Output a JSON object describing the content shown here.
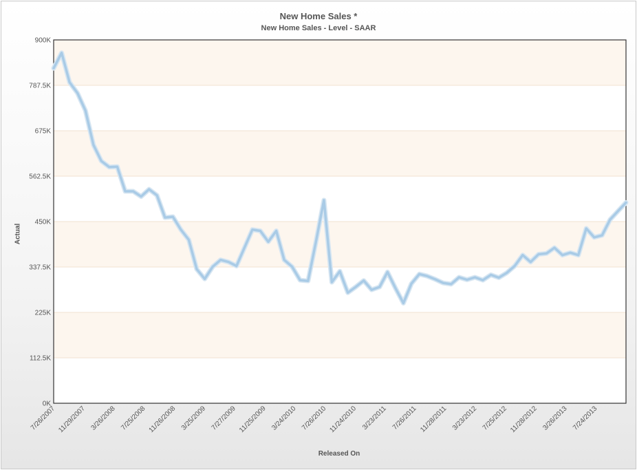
{
  "chart_data": {
    "type": "line",
    "title": "New Home Sales *",
    "subtitle": "New Home Sales - Level - SAAR",
    "xlabel": "Released On",
    "ylabel": "Actual",
    "ylim": [
      0,
      900000
    ],
    "y_ticks": [
      {
        "value": 0,
        "label": "0K"
      },
      {
        "value": 112500,
        "label": "112.5K"
      },
      {
        "value": 225000,
        "label": "225K"
      },
      {
        "value": 337500,
        "label": "337.5K"
      },
      {
        "value": 450000,
        "label": "450K"
      },
      {
        "value": 562500,
        "label": "562.5K"
      },
      {
        "value": 675000,
        "label": "675K"
      },
      {
        "value": 787500,
        "label": "787.5K"
      },
      {
        "value": 900000,
        "label": "900K"
      }
    ],
    "x_tick_labels": [
      "7/26/2007",
      "11/29/2007",
      "3/26/2008",
      "7/25/2008",
      "11/26/2008",
      "3/25/2009",
      "7/27/2009",
      "11/25/2009",
      "3/24/2010",
      "7/26/2010",
      "11/24/2010",
      "3/23/2011",
      "7/26/2011",
      "11/28/2011",
      "3/23/2012",
      "7/25/2012",
      "11/28/2012",
      "3/26/2013",
      "7/24/2013"
    ],
    "grid": true,
    "legend": "none",
    "series": [
      {
        "color": "#a9cbe6",
        "values": [
          830000,
          868000,
          795000,
          768000,
          725000,
          640000,
          600000,
          585000,
          586000,
          525000,
          525000,
          512000,
          530000,
          515000,
          460000,
          462000,
          430000,
          405000,
          332000,
          308000,
          338000,
          355000,
          350000,
          340000,
          385000,
          430000,
          427000,
          400000,
          427000,
          355000,
          338000,
          305000,
          303000,
          400000,
          503000,
          300000,
          327000,
          274000,
          288000,
          304000,
          281000,
          288000,
          325000,
          285000,
          248000,
          296000,
          320000,
          315000,
          307000,
          298000,
          295000,
          312000,
          306000,
          312000,
          305000,
          318000,
          311000,
          323000,
          340000,
          367000,
          350000,
          369000,
          371000,
          385000,
          367000,
          373000,
          367000,
          433000,
          411000,
          416000,
          455000,
          476000,
          497000
        ]
      }
    ]
  }
}
